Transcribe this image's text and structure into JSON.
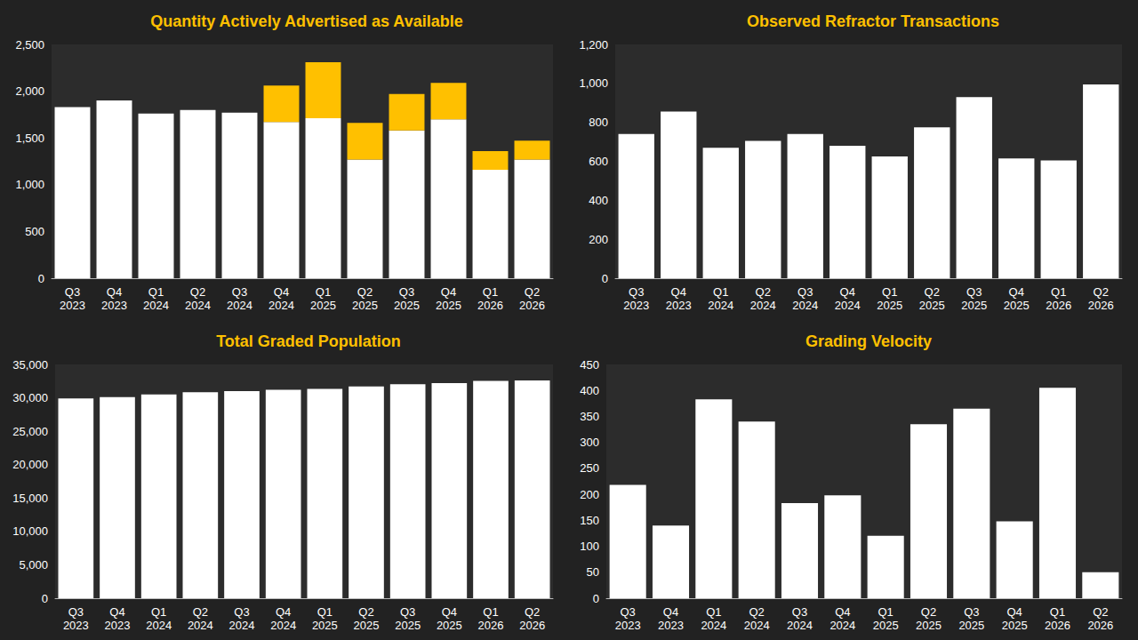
{
  "chart_data": [
    {
      "type": "bar",
      "title": "Quantity Actively Advertised as Available",
      "categories": [
        "Q3 2023",
        "Q4 2023",
        "Q1 2024",
        "Q2 2024",
        "Q3 2024",
        "Q4 2024",
        "Q1 2025",
        "Q2 2025",
        "Q3 2025",
        "Q4 2025",
        "Q1 2026",
        "Q2 2026"
      ],
      "stacked": true,
      "series": [
        {
          "color": "#ffffff",
          "values": [
            1830,
            1900,
            1760,
            1800,
            1770,
            1670,
            1710,
            1270,
            1580,
            1700,
            1160,
            1270
          ]
        },
        {
          "color": "#ffc000",
          "values": [
            0,
            0,
            0,
            0,
            0,
            390,
            600,
            390,
            390,
            390,
            200,
            200
          ]
        }
      ],
      "ylim": [
        0,
        2500
      ],
      "yticks": [
        0,
        500,
        {
          "value": 1000,
          "label": "1,000"
        },
        {
          "value": 1500,
          "label": "1,500"
        },
        {
          "value": 2000,
          "label": "2,000"
        },
        {
          "value": 2500,
          "label": "2,500"
        }
      ],
      "grid": false
    },
    {
      "type": "bar",
      "title": "Observed Refractor Transactions",
      "categories": [
        "Q3 2023",
        "Q4 2023",
        "Q1 2024",
        "Q2 2024",
        "Q3 2024",
        "Q4 2024",
        "Q1 2025",
        "Q2 2025",
        "Q3 2025",
        "Q4 2025",
        "Q1 2026",
        "Q2 2026"
      ],
      "values": [
        740,
        855,
        670,
        705,
        740,
        680,
        625,
        775,
        930,
        615,
        605,
        995
      ],
      "color": "#ffffff",
      "ylim": [
        0,
        1200
      ],
      "yticks": [
        0,
        200,
        400,
        600,
        800,
        {
          "value": 1000,
          "label": "1,000"
        },
        {
          "value": 1200,
          "label": "1,200"
        }
      ],
      "grid": false
    },
    {
      "type": "bar",
      "title": "Total Graded Population",
      "categories": [
        "Q3 2023",
        "Q4 2023",
        "Q1 2024",
        "Q2 2024",
        "Q3 2024",
        "Q4 2024",
        "Q1 2025",
        "Q2 2025",
        "Q3 2025",
        "Q4 2025",
        "Q1 2026",
        "Q2 2026"
      ],
      "values": [
        29900,
        30100,
        30500,
        30850,
        31000,
        31200,
        31350,
        31700,
        32050,
        32200,
        32550,
        32600
      ],
      "color": "#ffffff",
      "ylim": [
        0,
        35000
      ],
      "yticks": [
        0,
        {
          "value": 5000,
          "label": "5,000"
        },
        {
          "value": 10000,
          "label": "10,000"
        },
        {
          "value": 15000,
          "label": "15,000"
        },
        {
          "value": 20000,
          "label": "20,000"
        },
        {
          "value": 25000,
          "label": "25,000"
        },
        {
          "value": 30000,
          "label": "30,000"
        },
        {
          "value": 35000,
          "label": "35,000"
        }
      ],
      "grid": false
    },
    {
      "type": "bar",
      "title": "Grading Velocity",
      "categories": [
        "Q3 2023",
        "Q4 2023",
        "Q1 2024",
        "Q2 2024",
        "Q3 2024",
        "Q4 2024",
        "Q1 2025",
        "Q2 2025",
        "Q3 2025",
        "Q4 2025",
        "Q1 2026",
        "Q2 2026"
      ],
      "values": [
        218,
        140,
        383,
        340,
        183,
        198,
        120,
        335,
        365,
        148,
        405,
        50
      ],
      "color": "#ffffff",
      "ylim": [
        0,
        450
      ],
      "yticks": [
        0,
        50,
        100,
        150,
        200,
        250,
        300,
        350,
        400,
        450
      ],
      "grid": false
    }
  ]
}
